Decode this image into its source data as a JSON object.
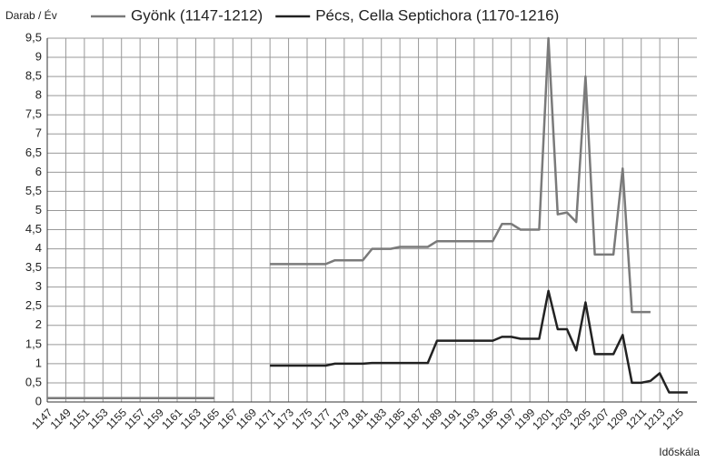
{
  "chart_data": {
    "type": "line",
    "y_label": "Darab / Év",
    "x_label": "Időskála",
    "x": [
      1147,
      1148,
      1149,
      1150,
      1151,
      1152,
      1153,
      1154,
      1155,
      1156,
      1157,
      1158,
      1159,
      1160,
      1161,
      1162,
      1163,
      1164,
      1165,
      1166,
      1167,
      1168,
      1169,
      1170,
      1171,
      1172,
      1173,
      1174,
      1175,
      1176,
      1177,
      1178,
      1179,
      1180,
      1181,
      1182,
      1183,
      1184,
      1185,
      1186,
      1187,
      1188,
      1189,
      1190,
      1191,
      1192,
      1193,
      1194,
      1195,
      1196,
      1197,
      1198,
      1199,
      1200,
      1201,
      1202,
      1203,
      1204,
      1205,
      1206,
      1207,
      1208,
      1209,
      1210,
      1211,
      1212,
      1213,
      1214,
      1215,
      1216
    ],
    "series": [
      {
        "name": "Gyönk (1147-1212)",
        "color": "#7a7a7a",
        "values": [
          0.1,
          0.1,
          0.1,
          0.1,
          0.1,
          0.1,
          0.1,
          0.1,
          0.1,
          0.1,
          0.1,
          0.1,
          0.1,
          0.1,
          0.1,
          0.1,
          0.1,
          0.1,
          0.1,
          null,
          null,
          null,
          null,
          null,
          3.6,
          3.6,
          3.6,
          3.6,
          3.6,
          3.6,
          3.6,
          3.7,
          3.7,
          3.7,
          3.7,
          4.0,
          4.0,
          4.0,
          4.05,
          4.05,
          4.05,
          4.05,
          4.2,
          4.2,
          4.2,
          4.2,
          4.2,
          4.2,
          4.2,
          4.65,
          4.65,
          4.5,
          4.5,
          4.5,
          9.5,
          4.9,
          4.95,
          4.7,
          8.5,
          3.85,
          3.85,
          3.85,
          6.1,
          2.35,
          2.35,
          2.35,
          null,
          null,
          null,
          null
        ]
      },
      {
        "name": "Pécs, Cella Septichora (1170-1216)",
        "color": "#222222",
        "values": [
          null,
          null,
          null,
          null,
          null,
          null,
          null,
          null,
          null,
          null,
          null,
          null,
          null,
          null,
          null,
          null,
          null,
          null,
          null,
          null,
          null,
          null,
          null,
          null,
          0.95,
          0.95,
          0.95,
          0.95,
          0.95,
          0.95,
          0.95,
          1.0,
          1.0,
          1.0,
          1.0,
          1.02,
          1.02,
          1.02,
          1.02,
          1.02,
          1.02,
          1.02,
          1.6,
          1.6,
          1.6,
          1.6,
          1.6,
          1.6,
          1.6,
          1.7,
          1.7,
          1.65,
          1.65,
          1.65,
          2.9,
          1.9,
          1.9,
          1.35,
          2.6,
          1.25,
          1.25,
          1.25,
          1.75,
          0.5,
          0.5,
          0.55,
          0.75,
          0.25,
          0.25,
          0.25
        ]
      }
    ],
    "xlim": [
      1147,
      1217
    ],
    "xticks": [
      1147,
      1149,
      1151,
      1153,
      1155,
      1157,
      1159,
      1161,
      1163,
      1165,
      1167,
      1169,
      1171,
      1173,
      1175,
      1177,
      1179,
      1181,
      1183,
      1185,
      1187,
      1189,
      1191,
      1193,
      1195,
      1197,
      1199,
      1201,
      1203,
      1205,
      1207,
      1209,
      1211,
      1213,
      1215
    ],
    "ylim": [
      0,
      9.5
    ],
    "yticks": [
      0,
      {
        "value": 0.5,
        "label": "0,5"
      },
      1,
      {
        "value": 1.5,
        "label": "1,5"
      },
      2,
      {
        "value": 2.5,
        "label": "2,5"
      },
      3,
      {
        "value": 3.5,
        "label": "3,5"
      },
      4,
      {
        "value": 4.5,
        "label": "4,5"
      },
      5,
      {
        "value": 5.5,
        "label": "5,5"
      },
      6,
      {
        "value": 6.5,
        "label": "6,5"
      },
      7,
      {
        "value": 7.5,
        "label": "7,5"
      },
      8,
      {
        "value": 8.5,
        "label": "8,5"
      },
      9,
      {
        "value": 9.5,
        "label": "9,5"
      }
    ],
    "grid": true,
    "legend": "top"
  }
}
